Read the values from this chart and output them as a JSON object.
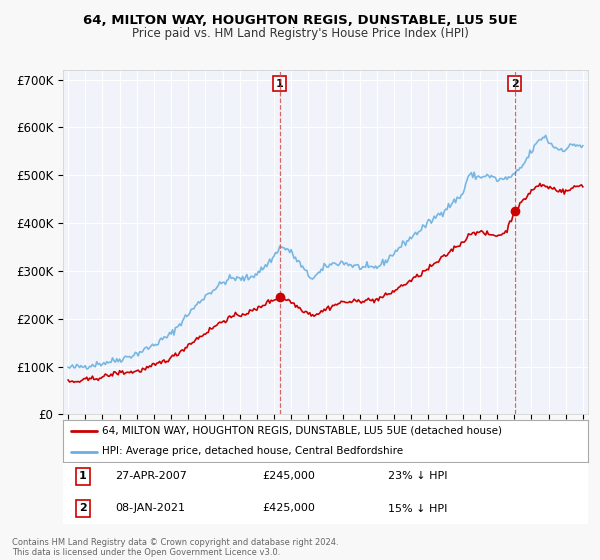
{
  "title": "64, MILTON WAY, HOUGHTON REGIS, DUNSTABLE, LU5 5UE",
  "subtitle": "Price paid vs. HM Land Registry's House Price Index (HPI)",
  "ylim": [
    0,
    720000
  ],
  "yticks": [
    0,
    100000,
    200000,
    300000,
    400000,
    500000,
    600000,
    700000
  ],
  "ytick_labels": [
    "£0",
    "£100K",
    "£200K",
    "£300K",
    "£400K",
    "£500K",
    "£600K",
    "£700K"
  ],
  "hpi_color": "#6ab0e0",
  "price_color": "#cc0000",
  "background_color": "#f0f4fa",
  "sale1_x": 2007.32,
  "sale1_y": 245000,
  "sale2_x": 2021.03,
  "sale2_y": 425000,
  "legend_line1": "64, MILTON WAY, HOUGHTON REGIS, DUNSTABLE, LU5 5UE (detached house)",
  "legend_line2": "HPI: Average price, detached house, Central Bedfordshire",
  "footer": "Contains HM Land Registry data © Crown copyright and database right 2024.\nThis data is licensed under the Open Government Licence v3.0.",
  "xmin": 1994.7,
  "xmax": 2025.3
}
